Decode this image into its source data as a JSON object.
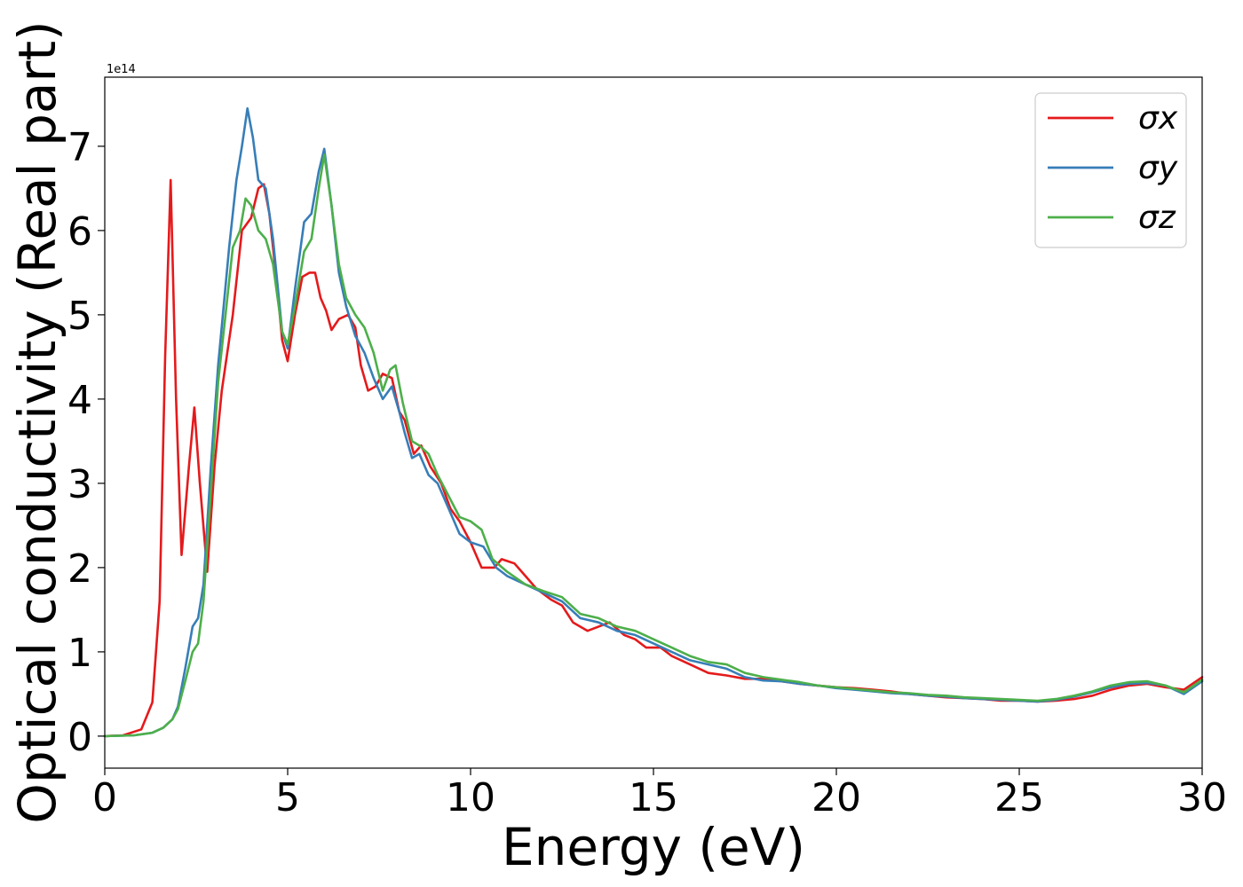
{
  "chart_data": {
    "type": "line",
    "xlabel": "Energy (eV)",
    "ylabel": "Optical conductivity (Real part)",
    "y_offset_text": "1e14",
    "xlim": [
      0,
      30
    ],
    "ylim": [
      -0.38,
      7.82
    ],
    "xticks": [
      0,
      5,
      10,
      15,
      20,
      25,
      30
    ],
    "xtick_labels": [
      "0",
      "5",
      "10",
      "15",
      "20",
      "25",
      "30"
    ],
    "yticks": [
      0,
      1,
      2,
      3,
      4,
      5,
      6,
      7
    ],
    "ytick_labels": [
      "0",
      "1",
      "2",
      "3",
      "4",
      "5",
      "6",
      "7"
    ],
    "grid": false,
    "legend_position": "top-right",
    "series": [
      {
        "name": "σx",
        "color": "#e41a1c",
        "points": [
          [
            0,
            0
          ],
          [
            0.5,
            0.01
          ],
          [
            1.0,
            0.08
          ],
          [
            1.3,
            0.4
          ],
          [
            1.5,
            1.6
          ],
          [
            1.65,
            4.5
          ],
          [
            1.8,
            6.6
          ],
          [
            1.95,
            4.0
          ],
          [
            2.1,
            2.15
          ],
          [
            2.3,
            3.2
          ],
          [
            2.45,
            3.9
          ],
          [
            2.6,
            3.0
          ],
          [
            2.8,
            1.95
          ],
          [
            3.0,
            3.2
          ],
          [
            3.2,
            4.1
          ],
          [
            3.5,
            5.0
          ],
          [
            3.75,
            6.0
          ],
          [
            4.0,
            6.15
          ],
          [
            4.2,
            6.5
          ],
          [
            4.35,
            6.55
          ],
          [
            4.5,
            6.2
          ],
          [
            4.7,
            5.4
          ],
          [
            4.85,
            4.7
          ],
          [
            5.0,
            4.45
          ],
          [
            5.2,
            5.0
          ],
          [
            5.4,
            5.45
          ],
          [
            5.6,
            5.5
          ],
          [
            5.75,
            5.5
          ],
          [
            5.9,
            5.2
          ],
          [
            6.05,
            5.05
          ],
          [
            6.2,
            4.82
          ],
          [
            6.4,
            4.95
          ],
          [
            6.65,
            5.0
          ],
          [
            6.85,
            4.85
          ],
          [
            7.0,
            4.4
          ],
          [
            7.2,
            4.1
          ],
          [
            7.4,
            4.15
          ],
          [
            7.6,
            4.3
          ],
          [
            7.85,
            4.25
          ],
          [
            8.05,
            3.85
          ],
          [
            8.2,
            3.75
          ],
          [
            8.45,
            3.35
          ],
          [
            8.65,
            3.45
          ],
          [
            8.9,
            3.2
          ],
          [
            9.2,
            3.0
          ],
          [
            9.45,
            2.7
          ],
          [
            9.7,
            2.55
          ],
          [
            10.0,
            2.3
          ],
          [
            10.3,
            2.0
          ],
          [
            10.65,
            2.0
          ],
          [
            10.85,
            2.1
          ],
          [
            11.2,
            2.05
          ],
          [
            11.5,
            1.9
          ],
          [
            11.8,
            1.75
          ],
          [
            12.2,
            1.62
          ],
          [
            12.5,
            1.55
          ],
          [
            12.8,
            1.35
          ],
          [
            13.2,
            1.25
          ],
          [
            13.5,
            1.3
          ],
          [
            13.8,
            1.35
          ],
          [
            14.2,
            1.2
          ],
          [
            14.5,
            1.15
          ],
          [
            14.8,
            1.05
          ],
          [
            15.2,
            1.05
          ],
          [
            15.5,
            0.95
          ],
          [
            16.0,
            0.85
          ],
          [
            16.5,
            0.75
          ],
          [
            17.0,
            0.72
          ],
          [
            17.5,
            0.68
          ],
          [
            18.0,
            0.68
          ],
          [
            18.5,
            0.65
          ],
          [
            19.0,
            0.62
          ],
          [
            19.5,
            0.6
          ],
          [
            20.0,
            0.58
          ],
          [
            20.5,
            0.57
          ],
          [
            21.0,
            0.55
          ],
          [
            21.5,
            0.53
          ],
          [
            22.0,
            0.5
          ],
          [
            22.5,
            0.48
          ],
          [
            23.0,
            0.46
          ],
          [
            23.5,
            0.45
          ],
          [
            24.0,
            0.44
          ],
          [
            24.5,
            0.42
          ],
          [
            25.0,
            0.42
          ],
          [
            25.5,
            0.41
          ],
          [
            26.0,
            0.42
          ],
          [
            26.5,
            0.44
          ],
          [
            27.0,
            0.48
          ],
          [
            27.5,
            0.55
          ],
          [
            28.0,
            0.6
          ],
          [
            28.5,
            0.62
          ],
          [
            29.0,
            0.58
          ],
          [
            29.5,
            0.55
          ],
          [
            30.0,
            0.7
          ]
        ]
      },
      {
        "name": "σy",
        "color": "#377eb8",
        "points": [
          [
            0,
            0
          ],
          [
            0.8,
            0.01
          ],
          [
            1.3,
            0.04
          ],
          [
            1.6,
            0.1
          ],
          [
            1.85,
            0.2
          ],
          [
            2.0,
            0.35
          ],
          [
            2.2,
            0.8
          ],
          [
            2.4,
            1.3
          ],
          [
            2.55,
            1.4
          ],
          [
            2.7,
            1.8
          ],
          [
            2.9,
            3.2
          ],
          [
            3.1,
            4.4
          ],
          [
            3.4,
            5.8
          ],
          [
            3.6,
            6.6
          ],
          [
            3.75,
            7.0
          ],
          [
            3.9,
            7.45
          ],
          [
            4.05,
            7.1
          ],
          [
            4.2,
            6.6
          ],
          [
            4.4,
            6.5
          ],
          [
            4.6,
            5.9
          ],
          [
            4.85,
            4.8
          ],
          [
            5.0,
            4.6
          ],
          [
            5.2,
            5.3
          ],
          [
            5.45,
            6.1
          ],
          [
            5.65,
            6.2
          ],
          [
            5.85,
            6.7
          ],
          [
            6.0,
            6.97
          ],
          [
            6.2,
            6.3
          ],
          [
            6.4,
            5.5
          ],
          [
            6.6,
            5.1
          ],
          [
            6.85,
            4.75
          ],
          [
            7.1,
            4.55
          ],
          [
            7.35,
            4.25
          ],
          [
            7.6,
            4.0
          ],
          [
            7.85,
            4.15
          ],
          [
            8.05,
            3.85
          ],
          [
            8.2,
            3.6
          ],
          [
            8.4,
            3.3
          ],
          [
            8.6,
            3.35
          ],
          [
            8.85,
            3.1
          ],
          [
            9.1,
            3.0
          ],
          [
            9.4,
            2.7
          ],
          [
            9.7,
            2.4
          ],
          [
            10.0,
            2.3
          ],
          [
            10.35,
            2.25
          ],
          [
            10.7,
            2.0
          ],
          [
            11.0,
            1.9
          ],
          [
            11.5,
            1.8
          ],
          [
            12.0,
            1.7
          ],
          [
            12.5,
            1.6
          ],
          [
            13.0,
            1.4
          ],
          [
            13.5,
            1.35
          ],
          [
            14.0,
            1.25
          ],
          [
            14.5,
            1.2
          ],
          [
            15.0,
            1.1
          ],
          [
            15.5,
            1.0
          ],
          [
            16.0,
            0.9
          ],
          [
            16.5,
            0.85
          ],
          [
            17.0,
            0.8
          ],
          [
            17.5,
            0.7
          ],
          [
            18.0,
            0.66
          ],
          [
            18.5,
            0.65
          ],
          [
            19.0,
            0.62
          ],
          [
            19.5,
            0.6
          ],
          [
            20.0,
            0.57
          ],
          [
            20.5,
            0.55
          ],
          [
            21.0,
            0.53
          ],
          [
            21.5,
            0.51
          ],
          [
            22.0,
            0.5
          ],
          [
            22.5,
            0.48
          ],
          [
            23.0,
            0.47
          ],
          [
            23.5,
            0.45
          ],
          [
            24.0,
            0.44
          ],
          [
            24.5,
            0.43
          ],
          [
            25.0,
            0.42
          ],
          [
            25.5,
            0.41
          ],
          [
            26.0,
            0.43
          ],
          [
            26.5,
            0.47
          ],
          [
            27.0,
            0.52
          ],
          [
            27.5,
            0.58
          ],
          [
            28.0,
            0.62
          ],
          [
            28.5,
            0.63
          ],
          [
            29.0,
            0.6
          ],
          [
            29.5,
            0.5
          ],
          [
            30.0,
            0.65
          ]
        ]
      },
      {
        "name": "σz",
        "color": "#4daf4a",
        "points": [
          [
            0,
            0
          ],
          [
            0.8,
            0.01
          ],
          [
            1.3,
            0.04
          ],
          [
            1.6,
            0.1
          ],
          [
            1.85,
            0.2
          ],
          [
            2.0,
            0.32
          ],
          [
            2.2,
            0.65
          ],
          [
            2.4,
            1.0
          ],
          [
            2.55,
            1.1
          ],
          [
            2.7,
            1.6
          ],
          [
            2.9,
            2.9
          ],
          [
            3.1,
            4.2
          ],
          [
            3.3,
            5.0
          ],
          [
            3.5,
            5.8
          ],
          [
            3.7,
            6.0
          ],
          [
            3.85,
            6.38
          ],
          [
            4.0,
            6.3
          ],
          [
            4.2,
            6.0
          ],
          [
            4.4,
            5.9
          ],
          [
            4.6,
            5.6
          ],
          [
            4.85,
            4.8
          ],
          [
            5.0,
            4.65
          ],
          [
            5.2,
            5.1
          ],
          [
            5.45,
            5.75
          ],
          [
            5.65,
            5.9
          ],
          [
            5.85,
            6.5
          ],
          [
            6.0,
            6.9
          ],
          [
            6.2,
            6.3
          ],
          [
            6.4,
            5.6
          ],
          [
            6.6,
            5.2
          ],
          [
            6.85,
            5.0
          ],
          [
            7.1,
            4.85
          ],
          [
            7.35,
            4.55
          ],
          [
            7.6,
            4.1
          ],
          [
            7.8,
            4.35
          ],
          [
            7.95,
            4.4
          ],
          [
            8.15,
            3.95
          ],
          [
            8.4,
            3.5
          ],
          [
            8.6,
            3.45
          ],
          [
            8.85,
            3.35
          ],
          [
            9.1,
            3.1
          ],
          [
            9.4,
            2.85
          ],
          [
            9.7,
            2.6
          ],
          [
            10.0,
            2.55
          ],
          [
            10.3,
            2.45
          ],
          [
            10.6,
            2.1
          ],
          [
            11.0,
            1.95
          ],
          [
            11.5,
            1.8
          ],
          [
            12.0,
            1.72
          ],
          [
            12.5,
            1.65
          ],
          [
            13.0,
            1.45
          ],
          [
            13.5,
            1.4
          ],
          [
            14.0,
            1.3
          ],
          [
            14.5,
            1.25
          ],
          [
            15.0,
            1.15
          ],
          [
            15.5,
            1.05
          ],
          [
            16.0,
            0.95
          ],
          [
            16.5,
            0.88
          ],
          [
            17.0,
            0.85
          ],
          [
            17.5,
            0.75
          ],
          [
            18.0,
            0.7
          ],
          [
            18.5,
            0.67
          ],
          [
            19.0,
            0.64
          ],
          [
            19.5,
            0.6
          ],
          [
            20.0,
            0.58
          ],
          [
            20.5,
            0.56
          ],
          [
            21.0,
            0.54
          ],
          [
            21.5,
            0.52
          ],
          [
            22.0,
            0.51
          ],
          [
            22.5,
            0.49
          ],
          [
            23.0,
            0.48
          ],
          [
            23.5,
            0.46
          ],
          [
            24.0,
            0.45
          ],
          [
            24.5,
            0.44
          ],
          [
            25.0,
            0.43
          ],
          [
            25.5,
            0.42
          ],
          [
            26.0,
            0.44
          ],
          [
            26.5,
            0.48
          ],
          [
            27.0,
            0.53
          ],
          [
            27.5,
            0.6
          ],
          [
            28.0,
            0.64
          ],
          [
            28.5,
            0.65
          ],
          [
            29.0,
            0.6
          ],
          [
            29.5,
            0.52
          ],
          [
            30.0,
            0.67
          ]
        ]
      }
    ]
  }
}
